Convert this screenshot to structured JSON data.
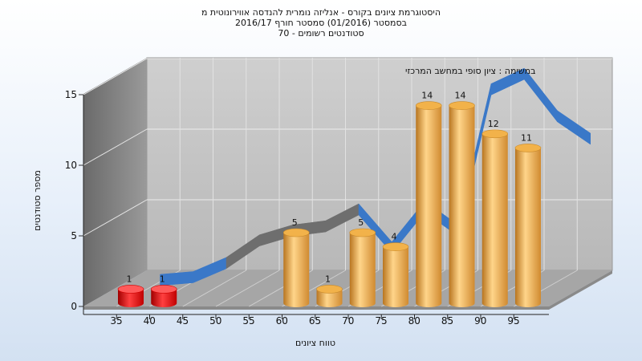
{
  "chart_data": {
    "type": "bar",
    "title": [
      "היסטוגרמת ציונים בקורס - אנליזה נומרית להנדסה אווירונוטית מ",
      "בסמסטר  (01/2016)  סמסטר חורף 2016/17",
      "סטודנטים רשומים - 70"
    ],
    "annotation": "במשימה : ציון סופי במחשב המרכזי",
    "xlabel": "טווח ציונים",
    "ylabel": "מספר סטודנטים",
    "x_ticks": [
      "35",
      "40",
      "45",
      "50",
      "55",
      "60",
      "65",
      "70",
      "75",
      "80",
      "85",
      "90",
      "95"
    ],
    "ylim": [
      0,
      15
    ],
    "y_ticks": [
      0,
      5,
      10,
      15
    ],
    "bars": [
      {
        "x": 35,
        "value": 1,
        "color": "#e01010"
      },
      {
        "x": 40,
        "value": 1,
        "color": "#e01010"
      },
      {
        "x": 60,
        "value": 5,
        "color": "#e8a040"
      },
      {
        "x": 65,
        "value": 1,
        "color": "#e8a040"
      },
      {
        "x": 70,
        "value": 5,
        "color": "#e8a040"
      },
      {
        "x": 75,
        "value": 4,
        "color": "#e8a040"
      },
      {
        "x": 80,
        "value": 14,
        "color": "#e8a040"
      },
      {
        "x": 85,
        "value": 14,
        "color": "#e8a040"
      },
      {
        "x": 90,
        "value": 12,
        "color": "#e8a040"
      },
      {
        "x": 95,
        "value": 11,
        "color": "#e8a040"
      }
    ],
    "curve": {
      "type": "area-ribbon",
      "x": [
        37,
        42,
        47,
        52,
        57,
        62,
        67,
        72,
        77,
        82,
        87,
        92,
        97,
        102
      ],
      "values": [
        0,
        0.2,
        1.2,
        2.8,
        3.5,
        3.8,
        5.0,
        2.3,
        5.2,
        3.5,
        13.5,
        14.6,
        11.6,
        10.0
      ],
      "color": "#3a78c8"
    },
    "grid": true
  }
}
